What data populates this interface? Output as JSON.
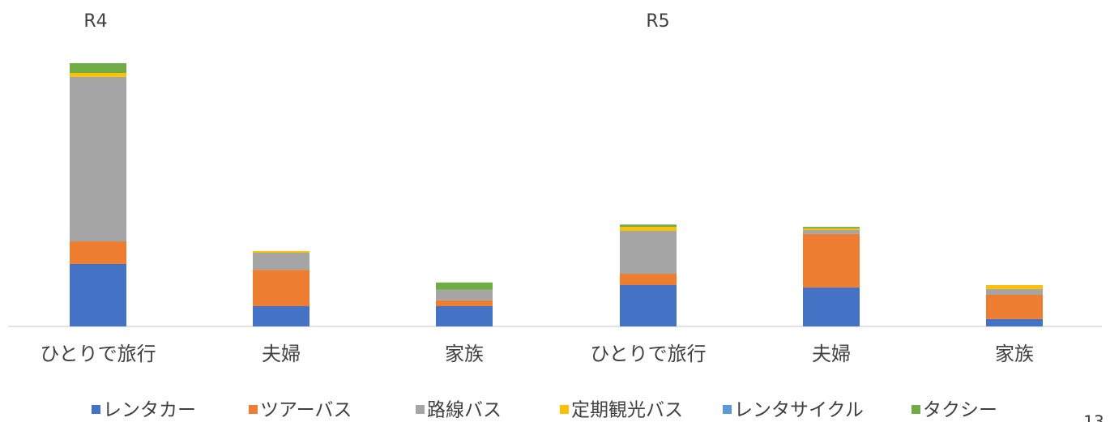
{
  "chart_data": {
    "type": "stacked_bar",
    "group_labels": [
      "R4",
      "R5"
    ],
    "categories": [
      "ひとりで旅行",
      "夫婦",
      "家族",
      "ひとりで旅行",
      "夫婦",
      "家族"
    ],
    "series": [
      {
        "name": "レンタカー",
        "color": "#4472c4",
        "values": [
          23.7,
          7.7,
          7.7,
          15.7,
          14.8,
          2.8
        ]
      },
      {
        "name": "ツアーバス",
        "color": "#ed7d31",
        "values": [
          8.6,
          13.8,
          2.2,
          4.3,
          20.3,
          9.2
        ]
      },
      {
        "name": "路線バス",
        "color": "#a5a5a5",
        "values": [
          62.5,
          6.5,
          4,
          16.3,
          1.5,
          2.2
        ]
      },
      {
        "name": "定期観光バス",
        "color": "#ffc000",
        "values": [
          1.5,
          0.6,
          0,
          1.5,
          0.6,
          1.5
        ]
      },
      {
        "name": "レンタサイクル",
        "color": "#5b9bd5",
        "values": [
          0,
          0,
          0,
          0,
          0,
          0
        ]
      },
      {
        "name": "タクシー",
        "color": "#70ad47",
        "values": [
          3.7,
          0,
          2.8,
          0.9,
          0.6,
          0
        ]
      }
    ],
    "ylim": [
      0,
      100
    ],
    "page_number": "13"
  }
}
